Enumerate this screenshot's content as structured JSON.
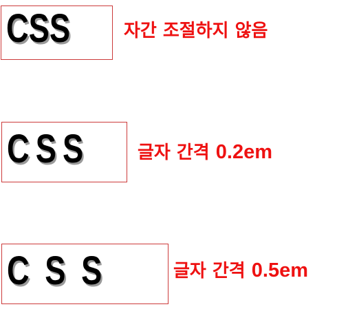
{
  "rows": [
    {
      "sample_text": "CSS",
      "caption": "자간 조절하지 않음",
      "caption_value": ""
    },
    {
      "sample_text": "CSS",
      "caption": "글자 간격 ",
      "caption_value": "0.2em"
    },
    {
      "sample_text": "CSS",
      "caption": "글자 간격 ",
      "caption_value": "0.5em"
    }
  ],
  "colors": {
    "caption": "#ee1111",
    "box_border": "#cc3a3a",
    "sample_text": "#000000",
    "sample_shadow": "#9a9a9a"
  }
}
